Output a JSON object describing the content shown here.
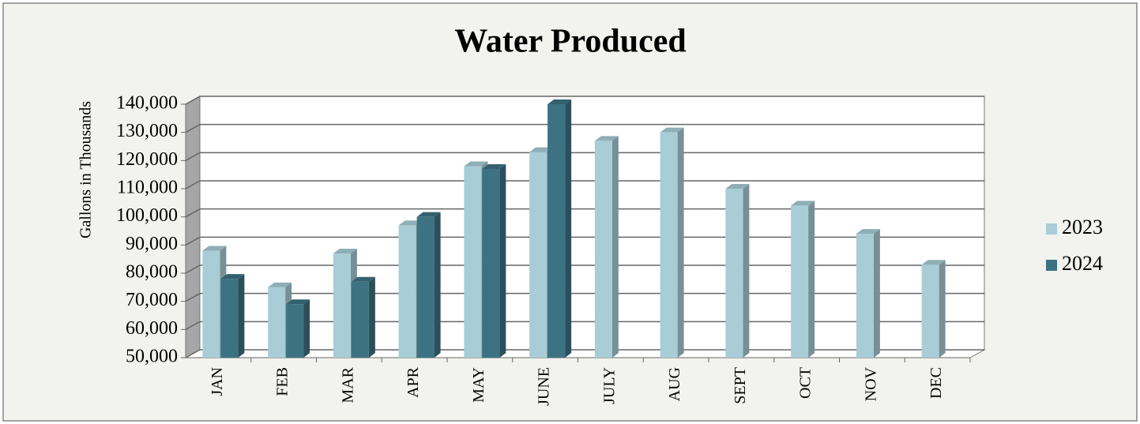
{
  "chart_data": {
    "type": "bar3d",
    "title": "Water Produced",
    "ylabel": "Gallons in Thousands",
    "categories": [
      "JAN",
      "FEB",
      "MAR",
      "APR",
      "MAY",
      "JUNE",
      "JULY",
      "AUG",
      "SEPT",
      "OCT",
      "NOV",
      "DEC"
    ],
    "series": [
      {
        "name": "2023",
        "color": "#a8cdd6",
        "values": [
          88000,
          75000,
          87000,
          97000,
          118000,
          123000,
          127000,
          130000,
          110000,
          104000,
          94000,
          83000
        ]
      },
      {
        "name": "2024",
        "color": "#3d7282",
        "values": [
          78000,
          69000,
          77000,
          100000,
          117000,
          140000,
          null,
          null,
          null,
          null,
          null,
          null
        ]
      }
    ],
    "ylim": [
      50000,
      140000
    ],
    "yticks": [
      {
        "value": 50000,
        "label": "50,000"
      },
      {
        "value": 60000,
        "label": "60,000"
      },
      {
        "value": 70000,
        "label": "70,000"
      },
      {
        "value": 80000,
        "label": "80,000"
      },
      {
        "value": 90000,
        "label": "90,000"
      },
      {
        "value": 100000,
        "label": "100,000"
      },
      {
        "value": 110000,
        "label": "110,000"
      },
      {
        "value": 120000,
        "label": "120,000"
      },
      {
        "value": 130000,
        "label": "130,000"
      },
      {
        "value": 140000,
        "label": "140,000"
      }
    ],
    "grid": true,
    "legend": "right"
  }
}
